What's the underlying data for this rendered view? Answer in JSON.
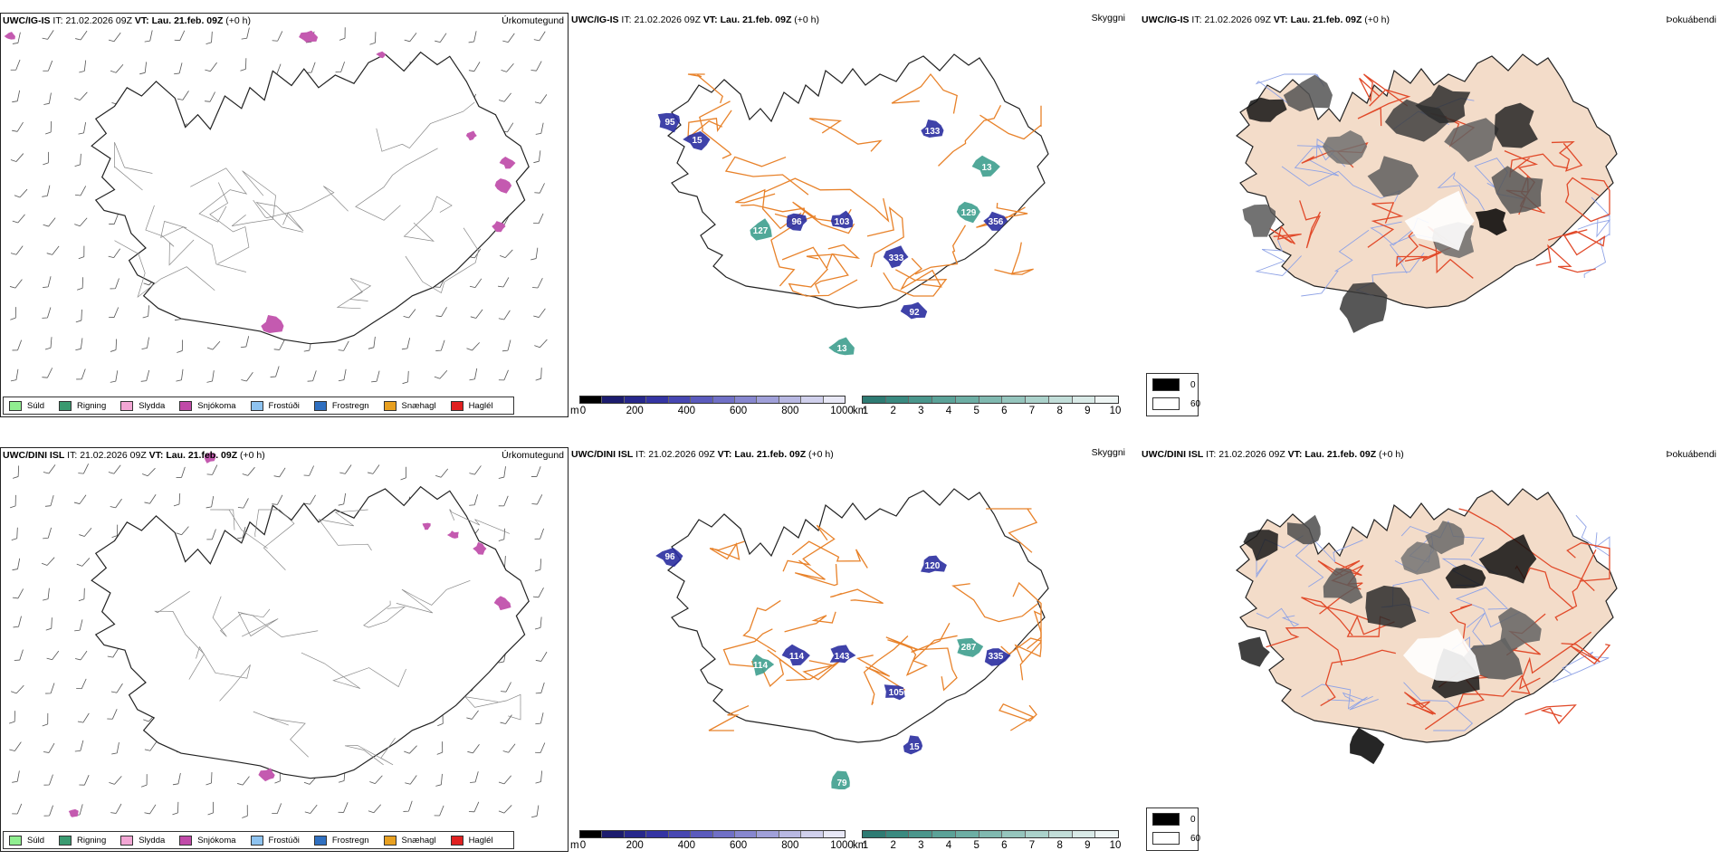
{
  "colors": {
    "land_fill": "#f3dcc9",
    "coast": "#222222",
    "road_orange": "#e8822a",
    "road_red": "#e14a2a",
    "river_blue": "#8fa3e6",
    "vis_blue": "#2a2ea0",
    "vis_teal": "#3e9e8e",
    "precip_magenta": "#c45ab0"
  },
  "rows": [
    {
      "model": "UWC/IG-IS",
      "it_label": "IT:",
      "it_value": "21.02.2026 09Z",
      "vt_label": "VT:",
      "vt_value": "Lau. 21.feb. 09Z",
      "lead": "(+0 h)",
      "vis_values": [
        "95",
        "96",
        "127",
        "103",
        "133",
        "129",
        "356",
        "333",
        "13",
        "92",
        "15",
        "13"
      ]
    },
    {
      "model": "UWC/DINI ISL",
      "it_label": "IT:",
      "it_value": "21.02.2026 09Z",
      "vt_label": "VT:",
      "vt_value": "Lau. 21.feb. 09Z",
      "lead": "(+0 h)",
      "vis_values": [
        "96",
        "114",
        "114",
        "143",
        "120",
        "287",
        "335",
        "105",
        "79",
        "15"
      ]
    }
  ],
  "panel_titles": {
    "precip": "Úrkomutegund",
    "visibility": "Skyggni",
    "cloud": "Þokuábendi"
  },
  "precip_legend": [
    {
      "label": "Súld",
      "color": "#90ee90"
    },
    {
      "label": "Rigning",
      "color": "#3a9a70"
    },
    {
      "label": "Slydda",
      "color": "#f2a6d4"
    },
    {
      "label": "Snjókoma",
      "color": "#c04aa8"
    },
    {
      "label": "Frostúði",
      "color": "#8ec3f0"
    },
    {
      "label": "Frostregn",
      "color": "#2f6fc0"
    },
    {
      "label": "Snæhagl",
      "color": "#e8a020"
    },
    {
      "label": "Haglél",
      "color": "#e02020"
    }
  ],
  "vis_m_scale": {
    "unit": "m",
    "ticks": [
      "0",
      "200",
      "400",
      "600",
      "800",
      "1000"
    ],
    "colors": [
      "#000000",
      "#1c1c6e",
      "#27288c",
      "#3535a3",
      "#4747b2",
      "#5b5bbd",
      "#7070c6",
      "#8787cf",
      "#a0a0d9",
      "#b8b8e2",
      "#d0d0ec",
      "#e8e8f6"
    ]
  },
  "vis_km_scale": {
    "unit": "km",
    "ticks": [
      "1",
      "2",
      "3",
      "4",
      "5",
      "6",
      "7",
      "8",
      "9",
      "10"
    ],
    "colors": [
      "#2e7b73",
      "#3a8a80",
      "#4a968c",
      "#5ba298",
      "#6daea4",
      "#80b9b0",
      "#95c5bd",
      "#abd2cb",
      "#c2ded9",
      "#d9eae7",
      "#eef5f4"
    ]
  },
  "cloud_legend": [
    {
      "label": "0",
      "color": "#000000"
    },
    {
      "label": "60",
      "color": "#ffffff"
    }
  ]
}
